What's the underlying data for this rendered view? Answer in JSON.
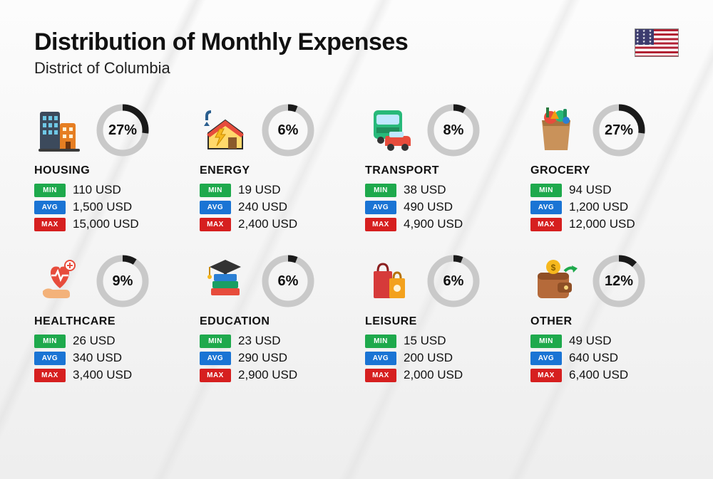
{
  "title": "Distribution of Monthly Expenses",
  "subtitle": "District of Columbia",
  "flag": {
    "star_row": "★ ★ ★ ★ ★",
    "rows": 4
  },
  "colors": {
    "ring_track": "#c9c9c9",
    "ring_fill": "#1a1a1a",
    "min": "#1ea94c",
    "avg": "#1a74d4",
    "max": "#d61f1f",
    "text": "#111111"
  },
  "ring": {
    "radius": 32,
    "stroke": 9,
    "circumference": 201.06
  },
  "labels": {
    "min": "MIN",
    "avg": "AVG",
    "max": "MAX",
    "unit": "USD"
  },
  "categories": [
    {
      "name": "HOUSING",
      "percent": 27,
      "min": "110",
      "avg": "1,500",
      "max": "15,000",
      "icon": "housing"
    },
    {
      "name": "ENERGY",
      "percent": 6,
      "min": "19",
      "avg": "240",
      "max": "2,400",
      "icon": "energy"
    },
    {
      "name": "TRANSPORT",
      "percent": 8,
      "min": "38",
      "avg": "490",
      "max": "4,900",
      "icon": "transport"
    },
    {
      "name": "GROCERY",
      "percent": 27,
      "min": "94",
      "avg": "1,200",
      "max": "12,000",
      "icon": "grocery"
    },
    {
      "name": "HEALTHCARE",
      "percent": 9,
      "min": "26",
      "avg": "340",
      "max": "3,400",
      "icon": "healthcare"
    },
    {
      "name": "EDUCATION",
      "percent": 6,
      "min": "23",
      "avg": "290",
      "max": "2,900",
      "icon": "education"
    },
    {
      "name": "LEISURE",
      "percent": 6,
      "min": "15",
      "avg": "200",
      "max": "2,000",
      "icon": "leisure"
    },
    {
      "name": "OTHER",
      "percent": 12,
      "min": "49",
      "avg": "640",
      "max": "6,400",
      "icon": "other"
    }
  ],
  "icons": {
    "housing": {
      "type": "buildings"
    },
    "energy": {
      "type": "house_bolt"
    },
    "transport": {
      "type": "bus_car"
    },
    "grocery": {
      "type": "bag_veg"
    },
    "healthcare": {
      "type": "heart_hand"
    },
    "education": {
      "type": "grad_books"
    },
    "leisure": {
      "type": "shopping_bags"
    },
    "other": {
      "type": "wallet_arrow"
    }
  }
}
